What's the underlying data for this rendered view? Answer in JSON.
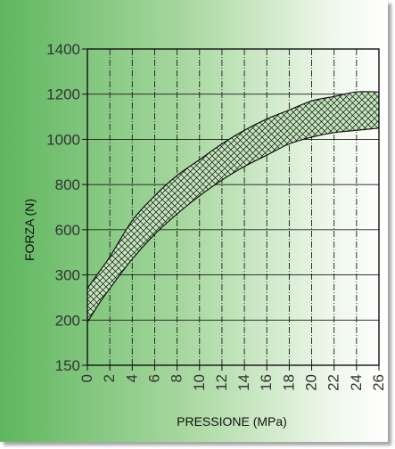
{
  "chart_data": {
    "type": "area",
    "xlabel": "PRESSIONE (MPa)",
    "ylabel": "FORZA (N)",
    "x_ticks": [
      "0",
      "2",
      "4",
      "6",
      "8",
      "10",
      "12",
      "14",
      "16",
      "18",
      "20",
      "22",
      "24",
      "26"
    ],
    "y_ticks": [
      "1400",
      "1200",
      "1000",
      "800",
      "600",
      "300",
      "200",
      "150"
    ],
    "xlim": [
      0,
      26
    ],
    "grid": true,
    "band": {
      "x": [
        0,
        1,
        2,
        4,
        6,
        8,
        10,
        12,
        14,
        16,
        18,
        20,
        22,
        24,
        26
      ],
      "upper_tick_index": [
        5.3,
        4.95,
        4.6,
        3.8,
        3.25,
        2.8,
        2.45,
        2.1,
        1.8,
        1.55,
        1.35,
        1.15,
        1.05,
        0.95,
        0.95
      ],
      "lower_tick_index": [
        6.05,
        5.65,
        5.3,
        4.65,
        4.1,
        3.65,
        3.25,
        2.9,
        2.6,
        2.35,
        2.1,
        1.95,
        1.85,
        1.8,
        1.75
      ]
    },
    "colors": {
      "background_left": "#5fb65f",
      "background_right": "#ffffff",
      "band_fill": "#b9deb1",
      "lines": "#111111"
    }
  }
}
